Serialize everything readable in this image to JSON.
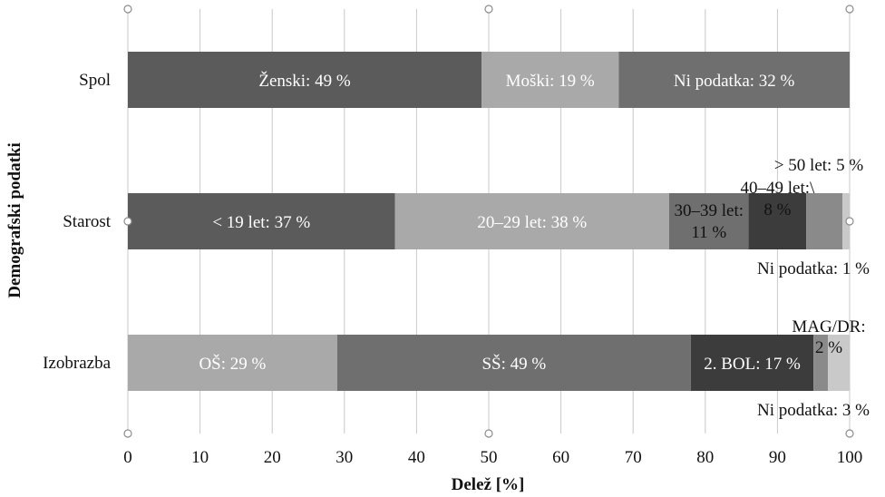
{
  "chart_data": {
    "type": "stacked-bar-horizontal",
    "xlabel": "Delež [%]",
    "ylabel": "Demografski podatki",
    "xlim": [
      0,
      100
    ],
    "xticks": [
      0,
      10,
      20,
      30,
      40,
      50,
      60,
      70,
      80,
      90,
      100
    ],
    "grid": true,
    "categories": [
      "Spol",
      "Starost",
      "Izobrazba"
    ],
    "bars": [
      {
        "category": "Spol",
        "segments": [
          {
            "value": 49,
            "label": "Ženski: 49 %",
            "color": "#5b5b5b"
          },
          {
            "value": 19,
            "label": "Moški: 19 %",
            "color": "#a9a9a9"
          },
          {
            "value": 32,
            "label": "Ni podatka: 32 %",
            "color": "#6f6f6f"
          }
        ]
      },
      {
        "category": "Starost",
        "segments": [
          {
            "value": 37,
            "label": "< 19 let: 37 %",
            "color": "#5b5b5b"
          },
          {
            "value": 38,
            "label": "20–29 let: 38 %",
            "color": "#a9a9a9"
          },
          {
            "value": 11,
            "label": [
              "30–39 let:",
              "11 %"
            ],
            "color": "#6f6f6f"
          },
          {
            "value": 8,
            "label": [
              "40–49 let:\\",
              "8 %"
            ],
            "color": "#3c3c3c"
          },
          {
            "value": 5,
            "label": "> 50 let: 5 %",
            "color": "#8a8a8a"
          },
          {
            "value": 1,
            "label": "Ni podatka: 1 %",
            "color": "#c9c9c9"
          }
        ]
      },
      {
        "category": "Izobrazba",
        "segments": [
          {
            "value": 29,
            "label": "OŠ: 29 %",
            "color": "#a9a9a9"
          },
          {
            "value": 49,
            "label": "SŠ: 49 %",
            "color": "#6f6f6f"
          },
          {
            "value": 17,
            "label": "2. BOL: 17 %",
            "color": "#3c3c3c"
          },
          {
            "value": 2,
            "label": [
              "MAG/DR:",
              "2 %"
            ],
            "color": "#8a8a8a"
          },
          {
            "value": 3,
            "label": "Ni podatka: 3 %",
            "color": "#c9c9c9"
          }
        ]
      }
    ]
  }
}
